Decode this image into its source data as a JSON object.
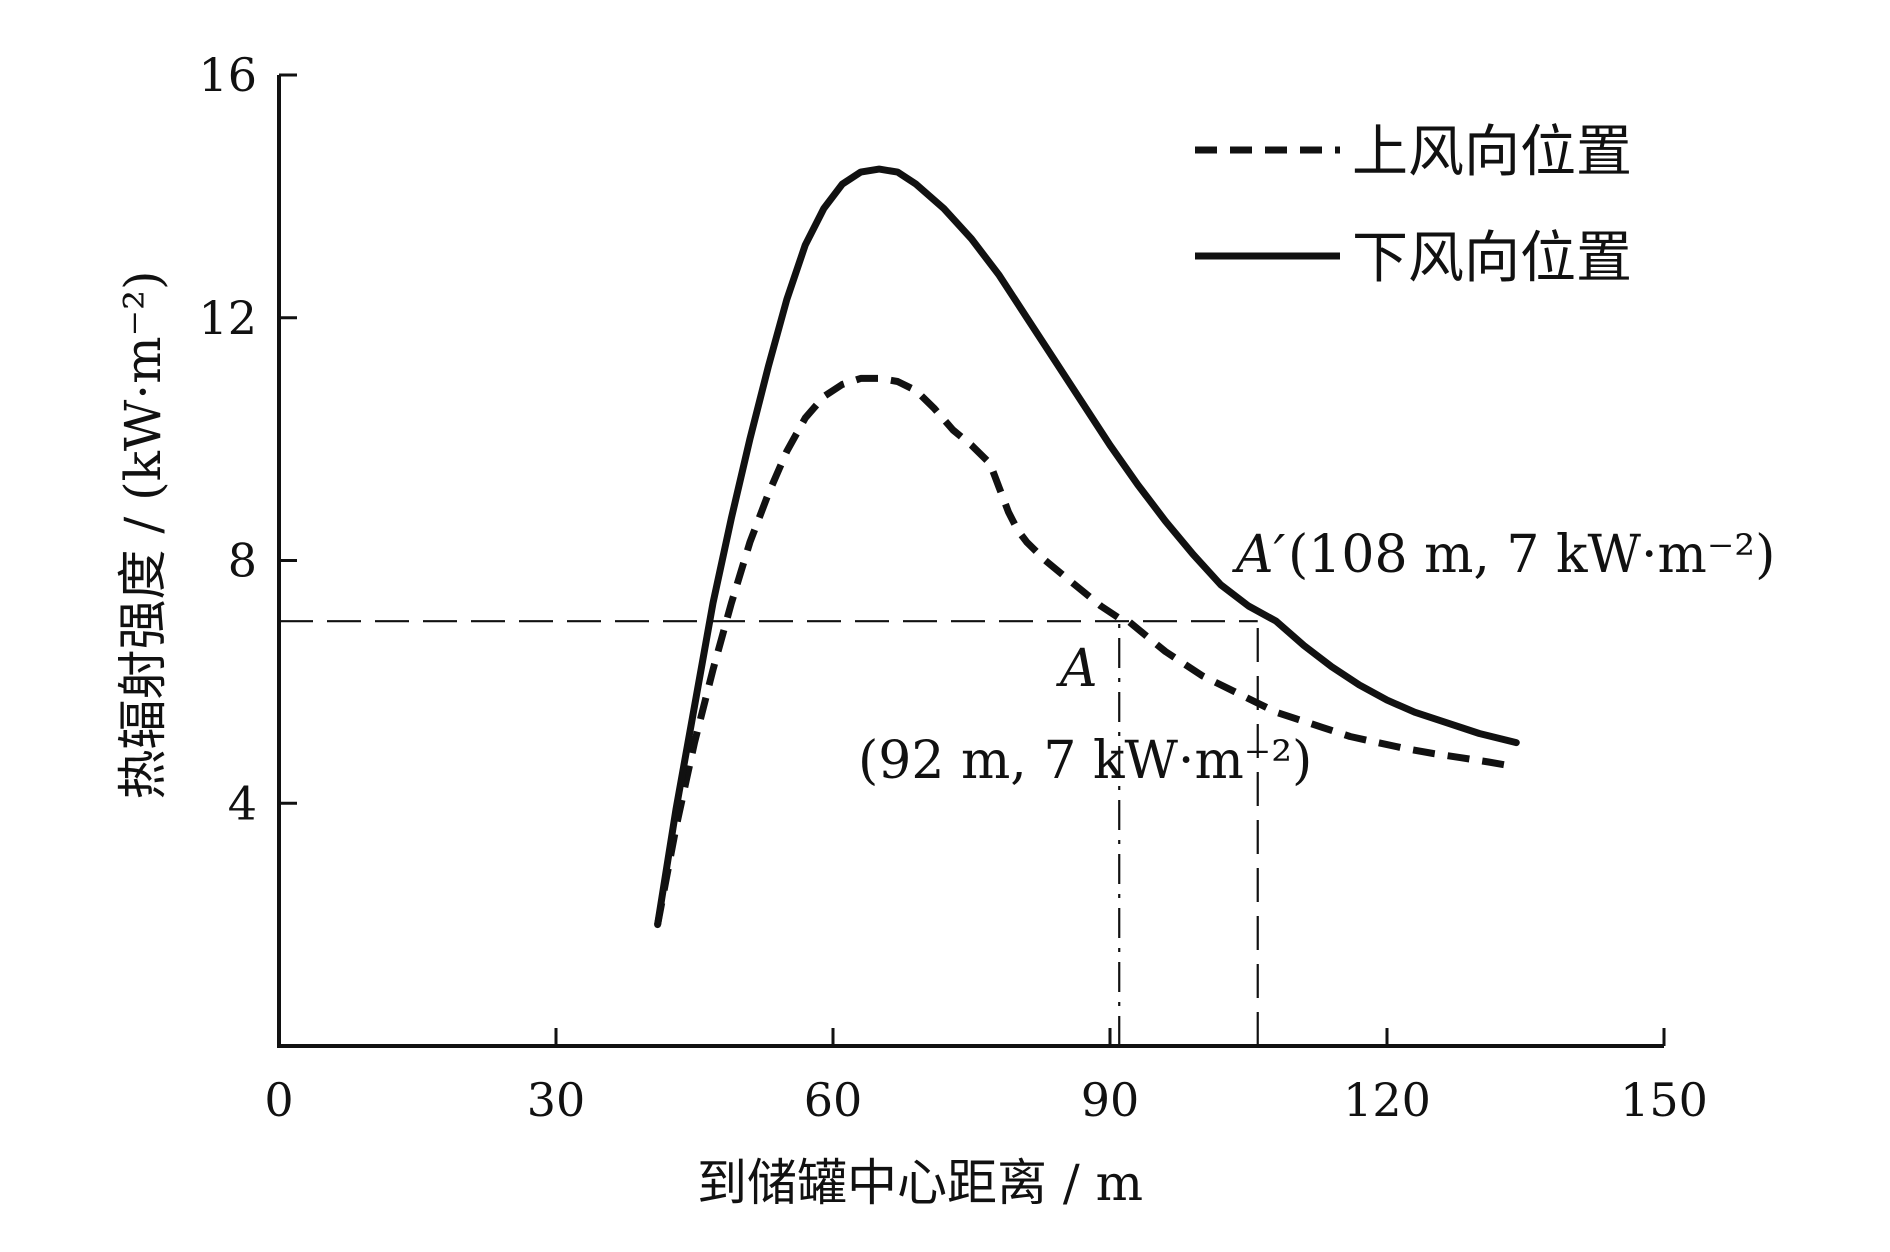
{
  "chart_data": {
    "type": "line",
    "xlabel": "到储罐中心距离 / m",
    "ylabel": "热辐射强度 / (kW·m⁻²)",
    "xlim": [
      0,
      150
    ],
    "ylim": [
      0,
      16
    ],
    "xticks": [
      0,
      30,
      60,
      90,
      120,
      150
    ],
    "yticks": [
      4,
      8,
      12,
      16
    ],
    "grid": false,
    "legend": {
      "position": "top-right"
    },
    "series": [
      {
        "name": "上风向位置",
        "style": "dashed",
        "color": "#111111",
        "x": [
          41,
          43,
          45,
          47,
          49,
          51,
          53,
          55,
          57,
          59,
          61,
          63,
          65,
          67,
          69,
          71,
          73,
          75,
          77,
          78,
          79,
          80,
          81,
          83,
          85,
          87,
          89,
          91,
          92,
          94,
          96,
          98,
          100,
          102,
          104,
          106,
          108,
          110,
          113,
          116,
          119,
          122,
          125,
          128,
          131,
          134
        ],
        "y": [
          2.0,
          3.6,
          5.0,
          6.2,
          7.3,
          8.3,
          9.1,
          9.8,
          10.35,
          10.7,
          10.9,
          11.0,
          11.0,
          10.95,
          10.8,
          10.5,
          10.15,
          9.9,
          9.6,
          9.2,
          8.8,
          8.5,
          8.3,
          8.0,
          7.75,
          7.5,
          7.25,
          7.05,
          7.0,
          6.75,
          6.5,
          6.3,
          6.1,
          5.95,
          5.8,
          5.65,
          5.5,
          5.4,
          5.25,
          5.1,
          5.0,
          4.9,
          4.82,
          4.75,
          4.68,
          4.6
        ]
      },
      {
        "name": "下风向位置",
        "style": "solid",
        "color": "#111111",
        "x": [
          41,
          43,
          45,
          47,
          49,
          51,
          53,
          55,
          57,
          59,
          61,
          63,
          65,
          67,
          69,
          72,
          75,
          78,
          81,
          84,
          87,
          90,
          93,
          96,
          99,
          102,
          105,
          108,
          111,
          114,
          117,
          120,
          123,
          126,
          130,
          134
        ],
        "y": [
          2.0,
          3.9,
          5.6,
          7.3,
          8.7,
          10.0,
          11.2,
          12.3,
          13.2,
          13.8,
          14.2,
          14.4,
          14.45,
          14.4,
          14.2,
          13.8,
          13.3,
          12.7,
          12.0,
          11.3,
          10.6,
          9.9,
          9.25,
          8.65,
          8.1,
          7.6,
          7.25,
          7.0,
          6.6,
          6.25,
          5.95,
          5.7,
          5.5,
          5.35,
          5.15,
          5.0
        ]
      }
    ],
    "reference_lines": [
      {
        "orientation": "horizontal",
        "y": 7,
        "x_from": 0,
        "x_to": 106
      },
      {
        "orientation": "vertical",
        "x": 91,
        "y_from": 0,
        "y_to": 7
      },
      {
        "orientation": "vertical",
        "x": 106,
        "y_from": 0,
        "y_to": 7
      }
    ],
    "annotations": [
      {
        "point": "A",
        "label": "A",
        "coords": "(92 m, 7 kW·m⁻²)"
      },
      {
        "point": "A'",
        "label": "A′",
        "coords": "(108 m, 7 kW·m⁻²)"
      }
    ]
  }
}
